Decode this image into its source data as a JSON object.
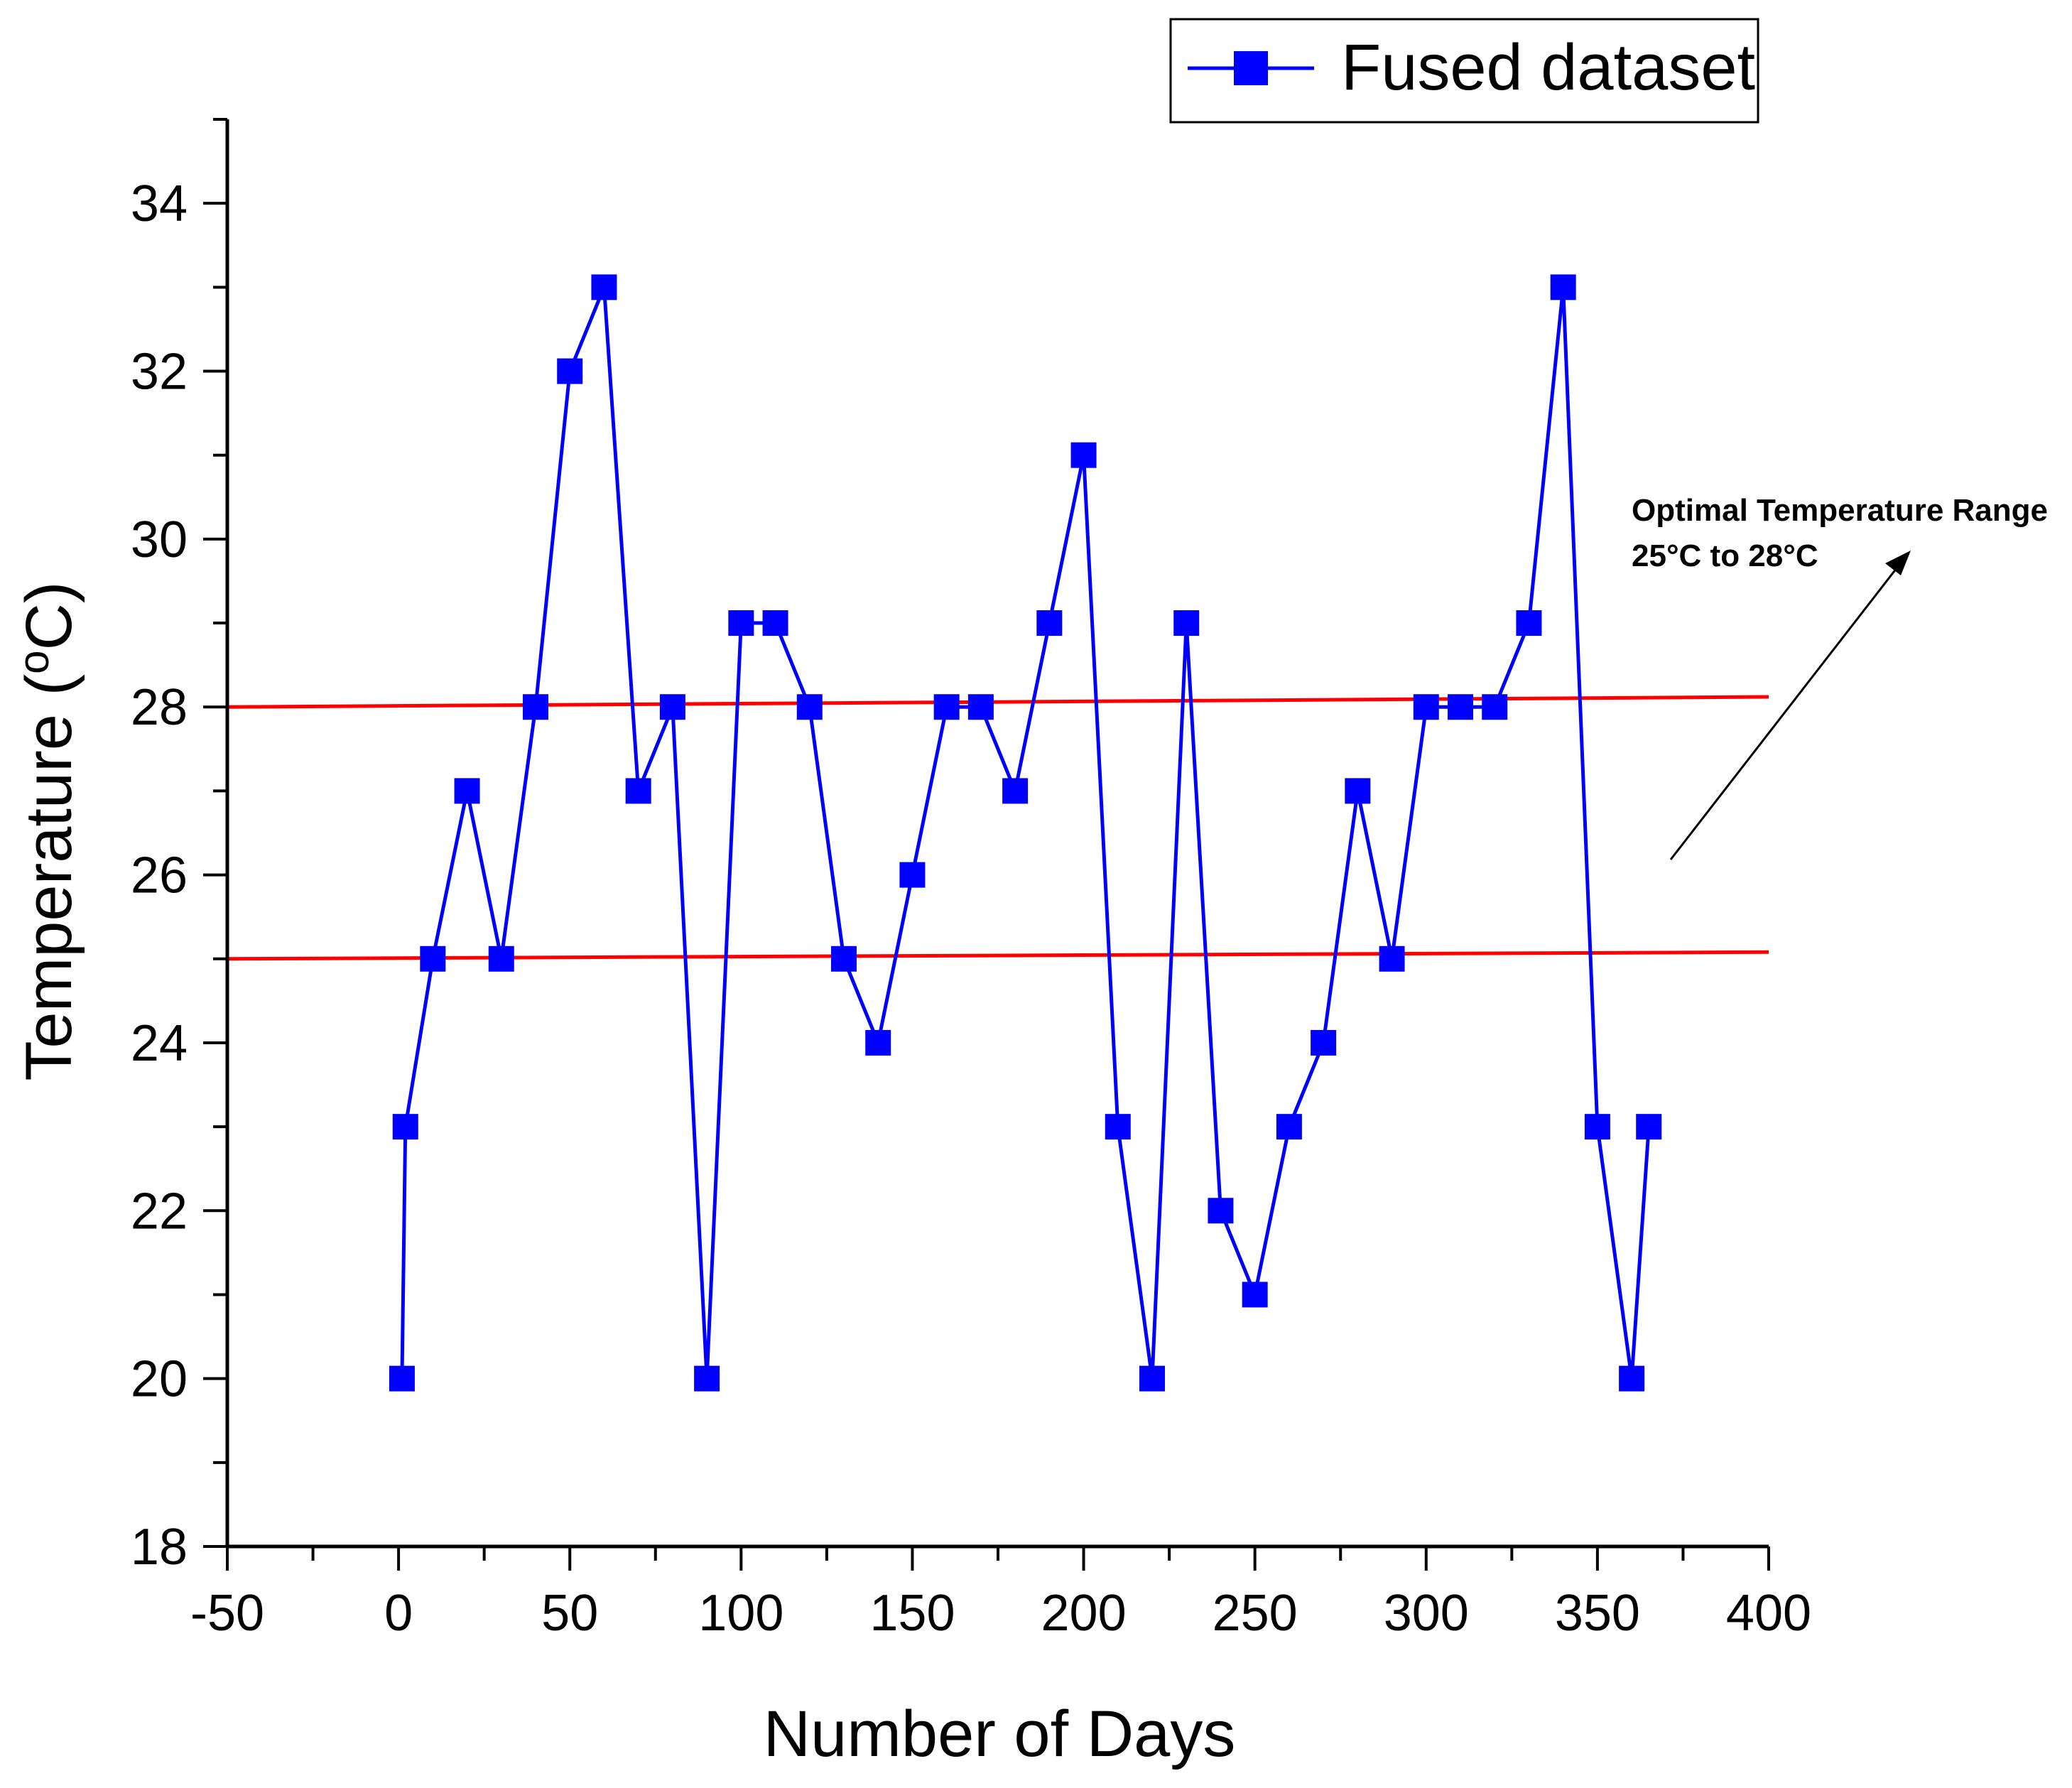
{
  "chart_data": {
    "type": "line",
    "xlabel": "Number of Days",
    "ylabel_main": "Temperature (",
    "ylabel_sup": "o",
    "ylabel_tail": "C)",
    "xlim": [
      -50,
      400
    ],
    "ylim": [
      18,
      35
    ],
    "x_major_ticks": [
      -50,
      0,
      50,
      100,
      150,
      200,
      250,
      300,
      350,
      400
    ],
    "x_tick_labels": [
      "-50",
      "0",
      "50",
      "100",
      "150",
      "200",
      "250",
      "300",
      "350",
      "400"
    ],
    "y_major_ticks": [
      18,
      20,
      22,
      24,
      26,
      28,
      30,
      32,
      34
    ],
    "y_tick_labels": [
      "18",
      "20",
      "22",
      "24",
      "26",
      "28",
      "30",
      "32",
      "34"
    ],
    "grid": false,
    "legend_position": "top-right",
    "series": [
      {
        "name": "Fused dataset",
        "color": "#0000ff",
        "marker": "square",
        "x": [
          1,
          2,
          10,
          20,
          30,
          40,
          50,
          60,
          70,
          80,
          90,
          100,
          110,
          120,
          130,
          140,
          150,
          160,
          170,
          180,
          190,
          200,
          210,
          220,
          230,
          240,
          250,
          260,
          270,
          280,
          290,
          300,
          310,
          320,
          330,
          340,
          350,
          360,
          365
        ],
        "y": [
          20,
          23,
          25,
          27,
          25,
          28,
          32,
          33,
          27,
          28,
          20,
          29,
          29,
          28,
          25,
          24,
          26,
          28,
          28,
          27,
          29,
          31,
          23,
          20,
          29,
          22,
          21,
          23,
          24,
          27,
          25,
          28,
          28,
          28,
          29,
          33,
          23,
          20,
          23
        ]
      }
    ],
    "reference_lines": [
      {
        "y_start": 28.0,
        "y_end": 28.12,
        "color": "#ff0000"
      },
      {
        "y_start": 25.0,
        "y_end": 25.08,
        "color": "#ff0000"
      }
    ],
    "annotation": {
      "line1": "Optimal Temperature Range",
      "line2": "25°C to 28°C"
    }
  }
}
